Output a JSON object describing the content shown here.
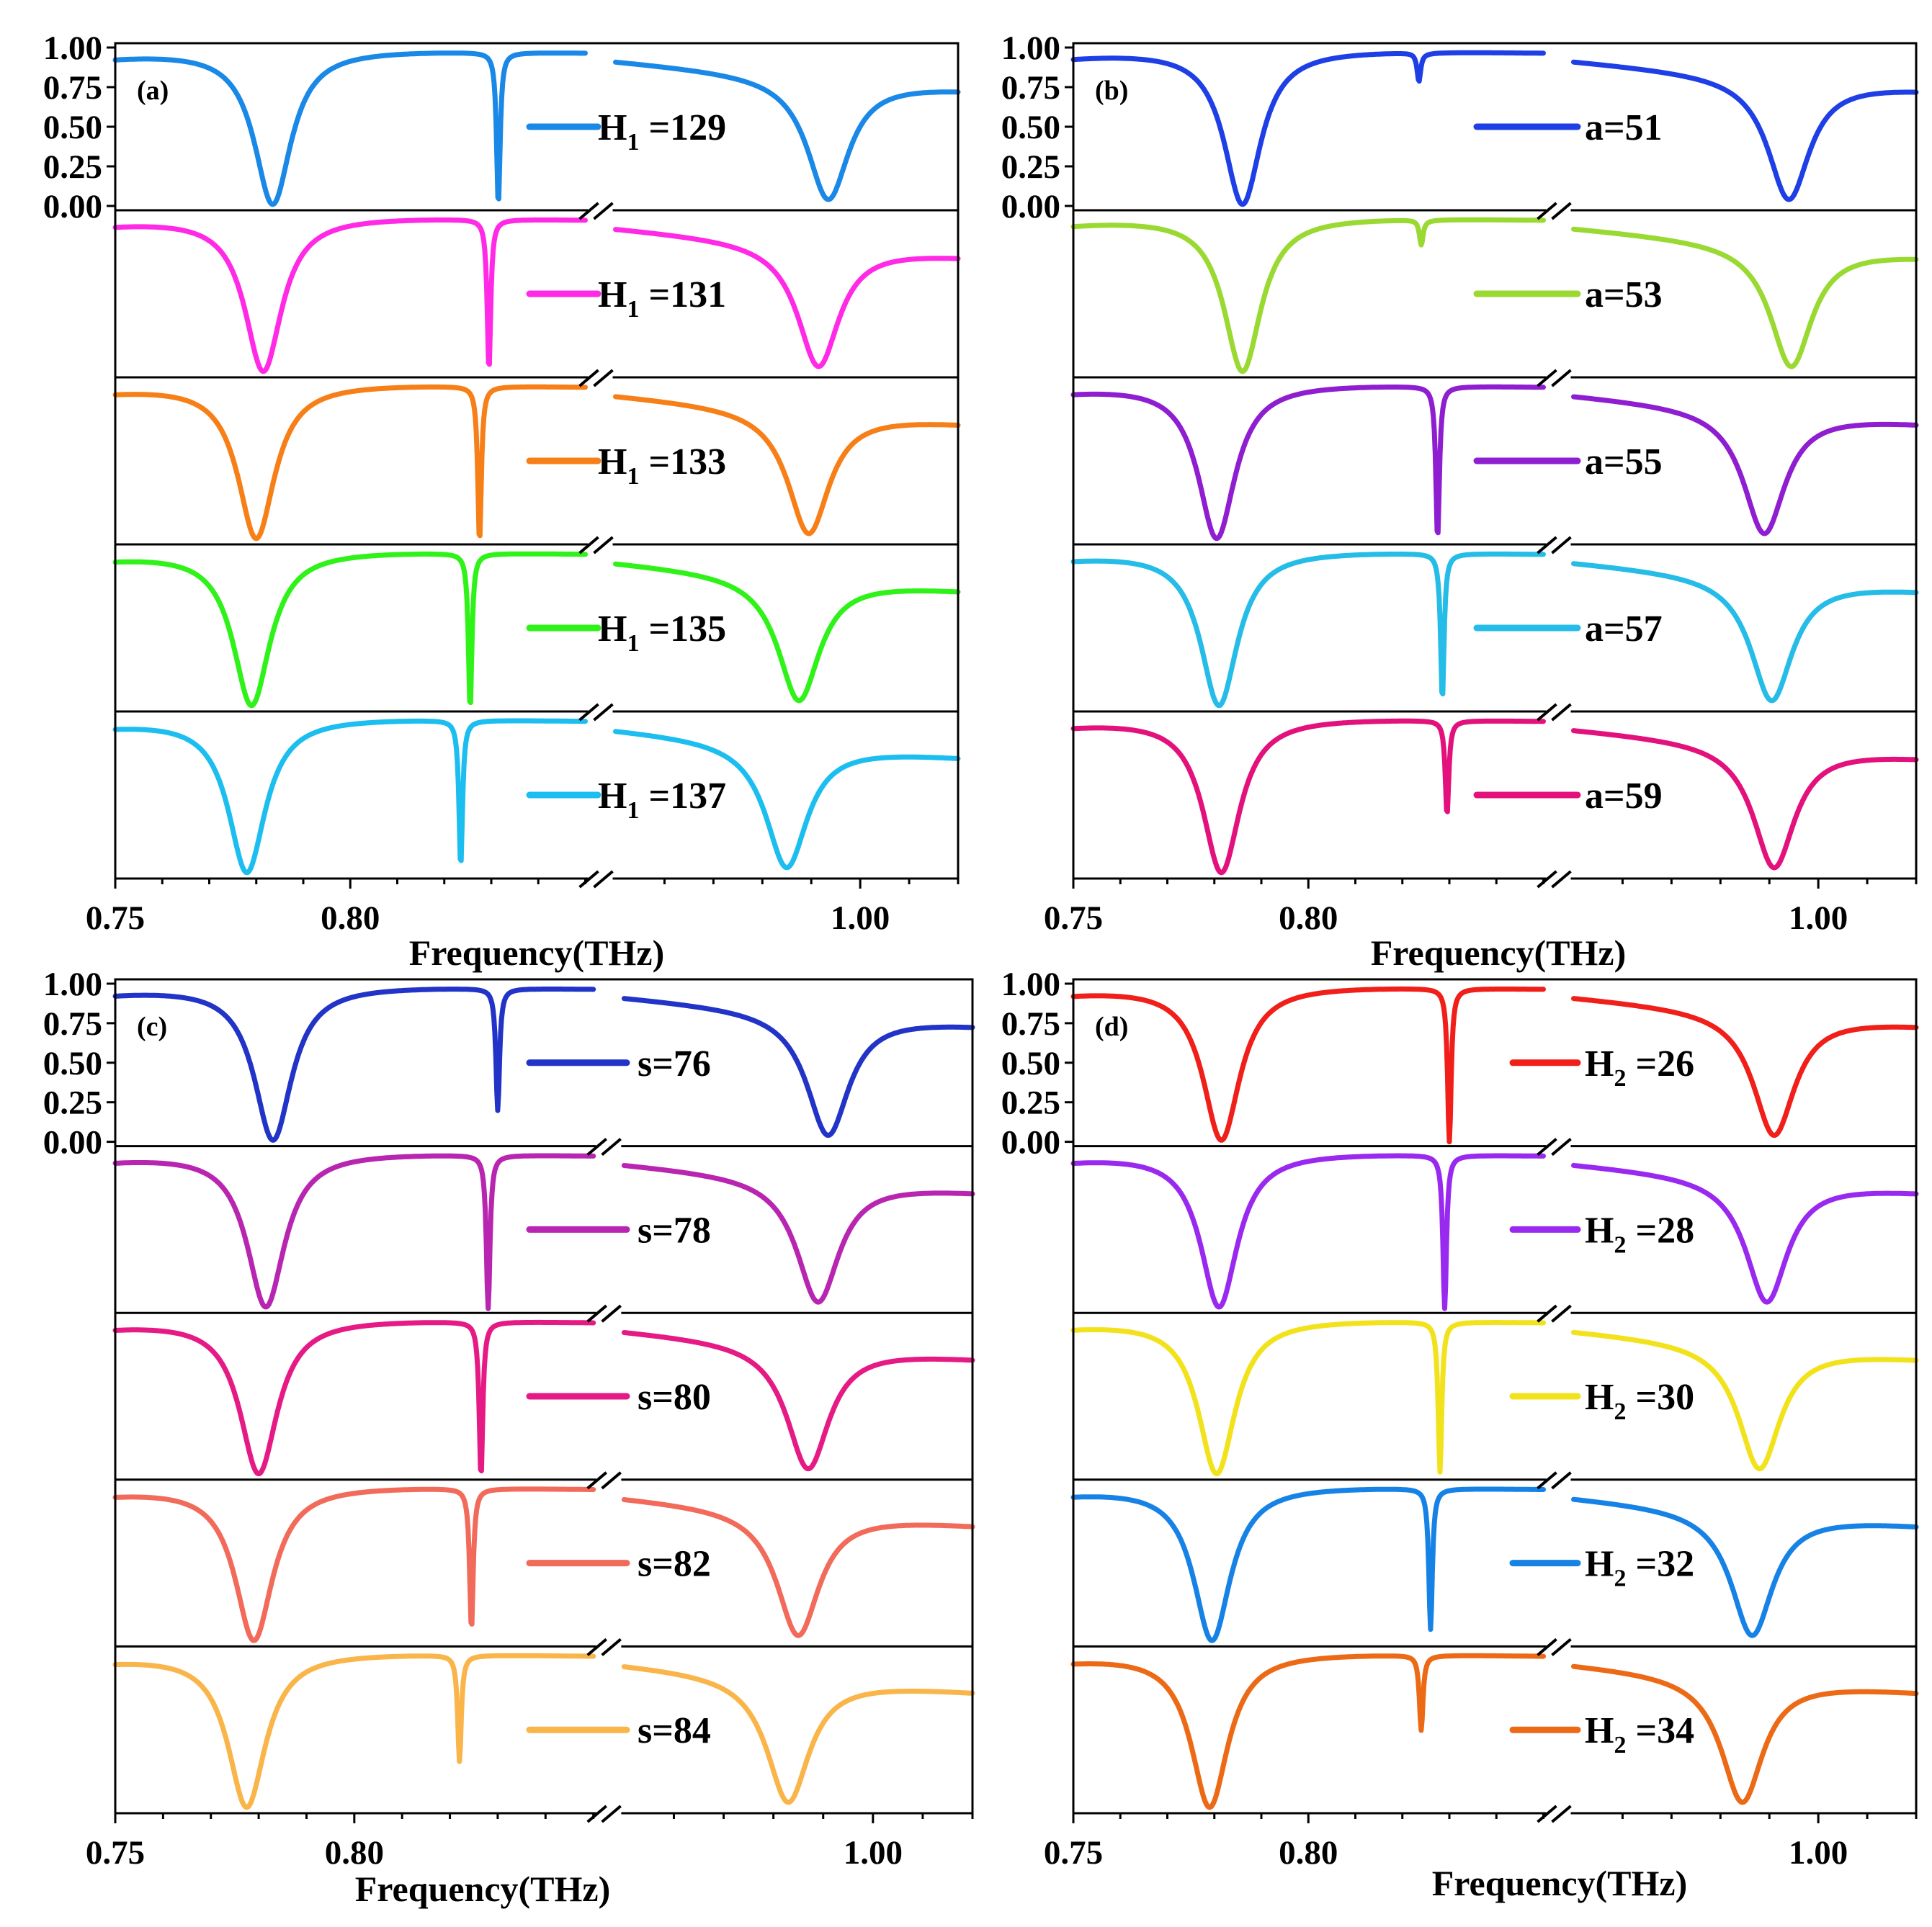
{
  "chart_data": [
    {
      "type": "line",
      "panel_label": "(a)",
      "xlabel": "Frequency(THz)",
      "ylabel": "",
      "x_tick_labels": [
        "0.75",
        "0.80",
        "1.00"
      ],
      "y_tick_labels": [
        "1.00",
        "0.75",
        "0.50",
        "0.25",
        "0.00"
      ],
      "ylim": [
        0,
        1
      ],
      "x_segments": [
        [
          0.75,
          0.85
        ],
        [
          0.95,
          1.02
        ]
      ],
      "series": [
        {
          "name": "H1 =129",
          "legend_main": "H",
          "legend_sub": "1",
          "legend_rest": " =129",
          "color": "#1a88e6",
          "dip1": 0.7835,
          "dip2": 0.8315,
          "dip3": 0.9935,
          "dip2_depth": 0.97
        },
        {
          "name": "H1 =131",
          "legend_main": "H",
          "legend_sub": "1",
          "legend_rest": " =131",
          "color": "#ff29e6",
          "dip1": 0.7815,
          "dip2": 0.8295,
          "dip3": 0.9915,
          "dip2_depth": 0.96
        },
        {
          "name": "H1 =133",
          "legend_main": "H",
          "legend_sub": "1",
          "legend_rest": " =133",
          "color": "#f77f17",
          "dip1": 0.78,
          "dip2": 0.8275,
          "dip3": 0.9895,
          "dip2_depth": 0.99
        },
        {
          "name": "H1 =135",
          "legend_main": "H",
          "legend_sub": "1",
          "legend_rest": " =135",
          "color": "#2ff219",
          "dip1": 0.779,
          "dip2": 0.8255,
          "dip3": 0.9875,
          "dip2_depth": 0.99
        },
        {
          "name": "H1 =137",
          "legend_main": "H",
          "legend_sub": "1",
          "legend_rest": " =137",
          "color": "#1cbef0",
          "dip1": 0.778,
          "dip2": 0.8235,
          "dip3": 0.985,
          "dip2_depth": 0.93
        }
      ]
    },
    {
      "type": "line",
      "panel_label": "(b)",
      "xlabel": "Frequency(THz)",
      "ylabel": "",
      "x_tick_labels": [
        "0.75",
        "0.80",
        "1.00"
      ],
      "y_tick_labels": [
        "1.00",
        "0.75",
        "0.50",
        "0.25",
        "0.00"
      ],
      "ylim": [
        0,
        1
      ],
      "x_segments": [
        [
          0.75,
          0.85
        ],
        [
          0.95,
          1.02
        ]
      ],
      "series": [
        {
          "name": "a=51",
          "legend_main": "a=51",
          "legend_sub": "",
          "legend_rest": "",
          "color": "#1f3fe6",
          "dip1": 0.786,
          "dip2": 0.8235,
          "dip3": 0.994,
          "dip2_depth": 0.18
        },
        {
          "name": "a=53",
          "legend_main": "a=53",
          "legend_sub": "",
          "legend_rest": "",
          "color": "#9ad932",
          "dip1": 0.786,
          "dip2": 0.824,
          "dip3": 0.9945,
          "dip2_depth": 0.16
        },
        {
          "name": "a=55",
          "legend_main": "a=55",
          "legend_sub": "",
          "legend_rest": "",
          "color": "#8e1ed0",
          "dip1": 0.7805,
          "dip2": 0.8275,
          "dip3": 0.989,
          "dip2_depth": 0.97
        },
        {
          "name": "a=57",
          "legend_main": "a=57",
          "legend_sub": "",
          "legend_rest": "",
          "color": "#25bce8",
          "dip1": 0.781,
          "dip2": 0.8285,
          "dip3": 0.9905,
          "dip2_depth": 0.93
        },
        {
          "name": "a=59",
          "legend_main": "a=59",
          "legend_sub": "",
          "legend_rest": "",
          "color": "#e3117b",
          "dip1": 0.7815,
          "dip2": 0.8295,
          "dip3": 0.991,
          "dip2_depth": 0.6
        }
      ]
    },
    {
      "type": "line",
      "panel_label": "(c)",
      "xlabel": "Frequency(THz)",
      "ylabel": "",
      "x_tick_labels": [
        "0.75",
        "0.80",
        "1.00"
      ],
      "y_tick_labels": [
        "1.00",
        "0.75",
        "0.50",
        "0.25",
        "0.00"
      ],
      "ylim": [
        0,
        1
      ],
      "x_segments": [
        [
          0.75,
          0.85
        ],
        [
          0.95,
          1.02
        ]
      ],
      "series": [
        {
          "name": "s=76",
          "legend_main": "s=76",
          "legend_sub": "",
          "legend_rest": "",
          "color": "#2233c7",
          "dip1": 0.783,
          "dip2": 0.83,
          "dip3": 0.991,
          "dip2_depth": 0.78
        },
        {
          "name": "s=78",
          "legend_main": "s=78",
          "legend_sub": "",
          "legend_rest": "",
          "color": "#b825b0",
          "dip1": 0.7815,
          "dip2": 0.828,
          "dip3": 0.989,
          "dip2_depth": 0.99
        },
        {
          "name": "s=80",
          "legend_main": "s=80",
          "legend_sub": "",
          "legend_rest": "",
          "color": "#e61a84",
          "dip1": 0.78,
          "dip2": 0.8265,
          "dip3": 0.987,
          "dip2_depth": 0.99
        },
        {
          "name": "s=82",
          "legend_main": "s=82",
          "legend_sub": "",
          "legend_rest": "",
          "color": "#f26a5a",
          "dip1": 0.779,
          "dip2": 0.8245,
          "dip3": 0.985,
          "dip2_depth": 0.9
        },
        {
          "name": "s=84",
          "legend_main": "s=84",
          "legend_sub": "",
          "legend_rest": "",
          "color": "#f9b54a",
          "dip1": 0.7775,
          "dip2": 0.822,
          "dip3": 0.983,
          "dip2_depth": 0.68
        }
      ]
    },
    {
      "type": "line",
      "panel_label": "(d)",
      "xlabel": "Frequency(THz)",
      "ylabel": "",
      "x_tick_labels": [
        "0.75",
        "0.80",
        "1.00"
      ],
      "y_tick_labels": [
        "1.00",
        "0.75",
        "0.50",
        "0.25",
        "0.00"
      ],
      "ylim": [
        0,
        1
      ],
      "x_segments": [
        [
          0.75,
          0.85
        ],
        [
          0.95,
          1.02
        ]
      ],
      "series": [
        {
          "name": "H2 =26",
          "legend_main": "H",
          "legend_sub": "2",
          "legend_rest": " =26",
          "color": "#f01f1a",
          "dip1": 0.7815,
          "dip2": 0.83,
          "dip3": 0.991,
          "dip2_depth": 0.99
        },
        {
          "name": "H2 =28",
          "legend_main": "H",
          "legend_sub": "2",
          "legend_rest": " =28",
          "color": "#9a29f0",
          "dip1": 0.781,
          "dip2": 0.829,
          "dip3": 0.9895,
          "dip2_depth": 0.99
        },
        {
          "name": "H2 =30",
          "legend_main": "H",
          "legend_sub": "2",
          "legend_rest": " =30",
          "color": "#f2e21c",
          "dip1": 0.7805,
          "dip2": 0.828,
          "dip3": 0.988,
          "dip2_depth": 0.96
        },
        {
          "name": "H2 =32",
          "legend_main": "H",
          "legend_sub": "2",
          "legend_rest": " =32",
          "color": "#1782e6",
          "dip1": 0.7795,
          "dip2": 0.826,
          "dip3": 0.9865,
          "dip2_depth": 0.9
        },
        {
          "name": "H2 =34",
          "legend_main": "H",
          "legend_sub": "2",
          "legend_rest": " =34",
          "color": "#ec6a16",
          "dip1": 0.779,
          "dip2": 0.824,
          "dip3": 0.9845,
          "dip2_depth": 0.48
        }
      ]
    }
  ]
}
